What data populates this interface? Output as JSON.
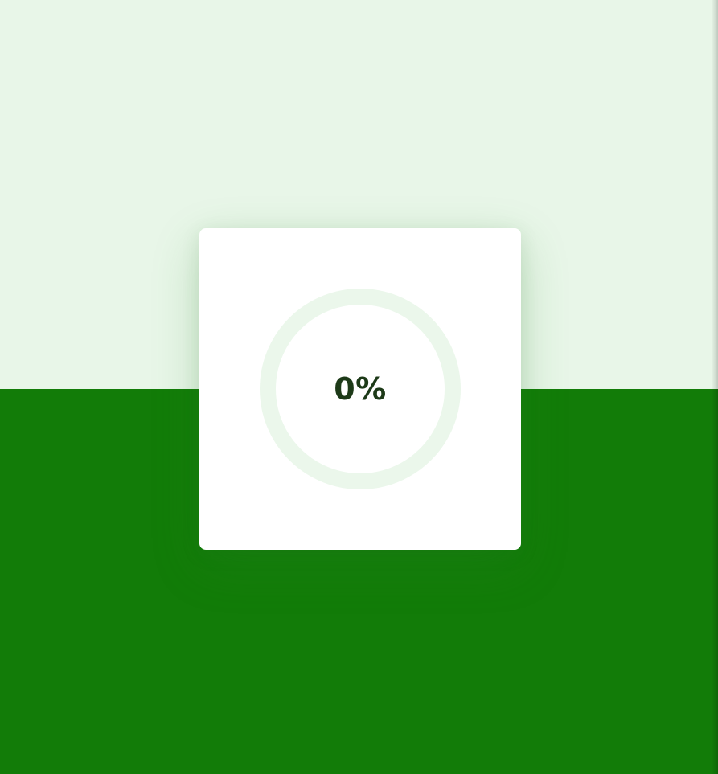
{
  "theme": {
    "background_top": "#e8f6e8",
    "background_bottom": "#127c08",
    "card_background": "#ffffff",
    "ring_track": "#ebf7eb",
    "ring_progress": "#127c08",
    "text_color": "#1d3a18"
  },
  "loader": {
    "progress_percent": 0,
    "progress_label": "0%"
  }
}
